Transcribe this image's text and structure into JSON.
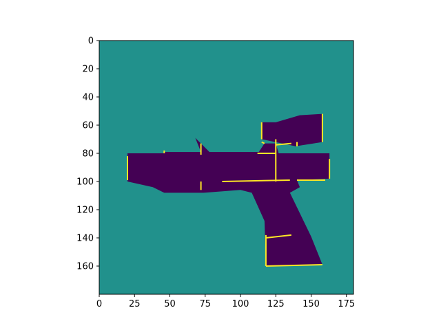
{
  "chart_data": {
    "type": "heatmap",
    "title": "",
    "xlabel": "",
    "ylabel": "",
    "grid": false,
    "legend": "none",
    "image_width": 180,
    "image_height": 180,
    "x_ticks": [
      0,
      25,
      50,
      75,
      100,
      125,
      150,
      175
    ],
    "y_ticks": [
      0,
      20,
      40,
      60,
      80,
      100,
      120,
      140,
      160
    ],
    "xlim": [
      0,
      180
    ],
    "ylim": [
      180,
      0
    ],
    "colormap": "viridis",
    "colors": {
      "background": "#21918c",
      "object": "#440154",
      "edge": "#fde725"
    },
    "regions": {
      "object": [
        [
          [
            20,
            80
          ],
          [
            46,
            80
          ],
          [
            46,
            79
          ],
          [
            72,
            79
          ],
          [
            68,
            69
          ],
          [
            78,
            79
          ],
          [
            113,
            79
          ],
          [
            117,
            73
          ],
          [
            125,
            73
          ],
          [
            127,
            80
          ],
          [
            163,
            80
          ],
          [
            163,
            98
          ],
          [
            140,
            99
          ],
          [
            142,
            104
          ],
          [
            135,
            108
          ],
          [
            150,
            139
          ],
          [
            158,
            159
          ],
          [
            118,
            160
          ],
          [
            117,
            128
          ],
          [
            108,
            108
          ],
          [
            100,
            106
          ],
          [
            74,
            108
          ],
          [
            46,
            108
          ],
          [
            38,
            104
          ],
          [
            20,
            100
          ]
        ],
        [
          [
            115,
            58
          ],
          [
            125,
            58
          ],
          [
            142,
            53
          ],
          [
            158,
            52
          ],
          [
            158,
            72
          ],
          [
            139,
            75
          ],
          [
            115,
            70
          ]
        ]
      ],
      "edges": [
        [
          [
            20,
            82
          ],
          [
            20,
            99
          ]
        ],
        [
          [
            46,
            78
          ],
          [
            46,
            80
          ]
        ],
        [
          [
            72,
            73
          ],
          [
            72,
            81
          ]
        ],
        [
          [
            72,
            100
          ],
          [
            72,
            106
          ]
        ],
        [
          [
            115,
            58
          ],
          [
            115,
            70
          ]
        ],
        [
          [
            115,
            72
          ],
          [
            117,
            73
          ]
        ],
        [
          [
            158,
            52
          ],
          [
            158,
            72
          ]
        ],
        [
          [
            140,
            72
          ],
          [
            140,
            75
          ]
        ],
        [
          [
            125,
            70
          ],
          [
            125,
            100
          ]
        ],
        [
          [
            125,
            74
          ],
          [
            136,
            73
          ]
        ],
        [
          [
            87,
            100
          ],
          [
            135,
            99
          ]
        ],
        [
          [
            112,
            80
          ],
          [
            125,
            80
          ]
        ],
        [
          [
            163,
            84
          ],
          [
            163,
            98
          ]
        ],
        [
          [
            118,
            138
          ],
          [
            118,
            160
          ]
        ],
        [
          [
            118,
            140
          ],
          [
            136,
            138
          ]
        ],
        [
          [
            118,
            160
          ],
          [
            158,
            159
          ]
        ],
        [
          [
            140,
            99
          ],
          [
            160,
            99
          ]
        ]
      ]
    }
  }
}
